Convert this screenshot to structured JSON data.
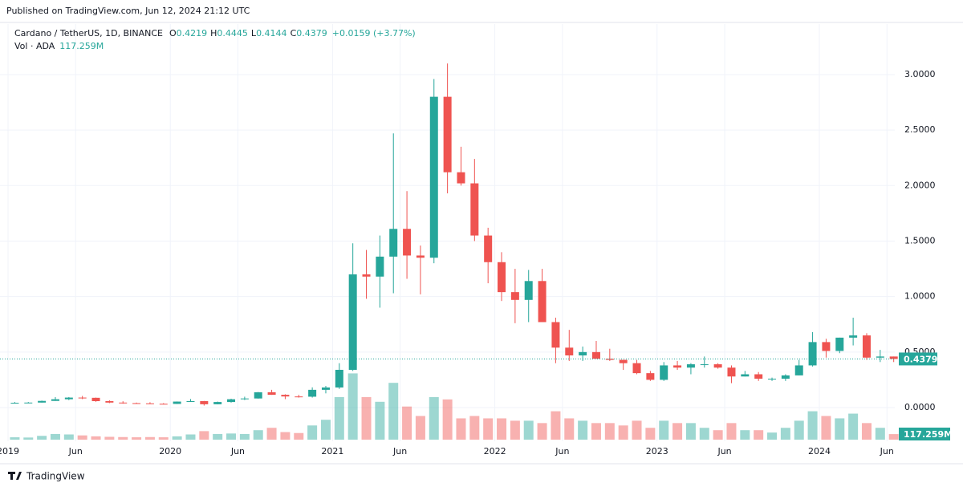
{
  "published": "Published on TradingView.com, Jun 12, 2024 21:12 UTC",
  "footer": "TradingView",
  "chart_data": {
    "type": "candlestick",
    "title": "Cardano / TetherUS, 1D, BINANCE",
    "ohlc_legend": [
      {
        "label": "O",
        "value": "0.4219"
      },
      {
        "label": "H",
        "value": "0.4445"
      },
      {
        "label": "L",
        "value": "0.4144"
      },
      {
        "label": "C",
        "value": "0.4379"
      }
    ],
    "change": "+0.0159 (+3.77%)",
    "volume_legend": {
      "label": "Vol · ADA",
      "value": "117.259M"
    },
    "x": [
      "2019-01",
      "2019-02",
      "2019-03",
      "2019-04",
      "2019-05",
      "2019-06",
      "2019-07",
      "2019-08",
      "2019-09",
      "2019-10",
      "2019-11",
      "2019-12",
      "2020-01",
      "2020-02",
      "2020-03",
      "2020-04",
      "2020-05",
      "2020-06",
      "2020-07",
      "2020-08",
      "2020-09",
      "2020-10",
      "2020-11",
      "2020-12",
      "2021-01",
      "2021-02",
      "2021-03",
      "2021-04",
      "2021-05",
      "2021-06",
      "2021-07",
      "2021-08",
      "2021-09",
      "2021-10",
      "2021-11",
      "2021-12",
      "2022-01",
      "2022-02",
      "2022-03",
      "2022-04",
      "2022-05",
      "2022-06",
      "2022-07",
      "2022-08",
      "2022-09",
      "2022-10",
      "2022-11",
      "2022-12",
      "2023-01",
      "2023-02",
      "2023-03",
      "2023-04",
      "2023-05",
      "2023-06",
      "2023-07",
      "2023-08",
      "2023-09",
      "2023-10",
      "2023-11",
      "2023-12",
      "2024-01",
      "2024-02",
      "2024-03",
      "2024-04",
      "2024-05",
      "2024-06"
    ],
    "open": [
      0.042,
      0.043,
      0.045,
      0.06,
      0.075,
      0.09,
      0.088,
      0.058,
      0.045,
      0.04,
      0.038,
      0.034,
      0.033,
      0.054,
      0.058,
      0.03,
      0.05,
      0.075,
      0.082,
      0.138,
      0.115,
      0.1,
      0.098,
      0.16,
      0.181,
      0.34,
      1.2,
      1.18,
      1.36,
      1.61,
      1.37,
      1.35,
      2.8,
      2.12,
      2.02,
      1.55,
      1.31,
      1.04,
      0.97,
      1.14,
      0.77,
      0.54,
      0.47,
      0.5,
      0.44,
      0.43,
      0.4,
      0.31,
      0.25,
      0.38,
      0.36,
      0.39,
      0.39,
      0.36,
      0.28,
      0.3,
      0.26,
      0.26,
      0.29,
      0.38,
      0.59,
      0.51,
      0.63,
      0.65,
      0.45,
      0.46
    ],
    "high": [
      0.05,
      0.05,
      0.063,
      0.094,
      0.095,
      0.105,
      0.09,
      0.065,
      0.057,
      0.045,
      0.048,
      0.04,
      0.055,
      0.077,
      0.06,
      0.054,
      0.08,
      0.098,
      0.14,
      0.16,
      0.12,
      0.115,
      0.182,
      0.195,
      0.4,
      1.48,
      1.42,
      1.55,
      2.47,
      1.95,
      1.46,
      2.96,
      3.1,
      2.35,
      2.24,
      1.62,
      1.4,
      1.25,
      1.24,
      1.25,
      0.81,
      0.7,
      0.55,
      0.6,
      0.53,
      0.43,
      0.43,
      0.33,
      0.41,
      0.42,
      0.4,
      0.46,
      0.4,
      0.38,
      0.33,
      0.32,
      0.27,
      0.3,
      0.43,
      0.68,
      0.62,
      0.63,
      0.81,
      0.67,
      0.52,
      0.46
    ],
    "low": [
      0.036,
      0.039,
      0.045,
      0.06,
      0.067,
      0.076,
      0.052,
      0.04,
      0.035,
      0.035,
      0.032,
      0.031,
      0.032,
      0.053,
      0.018,
      0.029,
      0.045,
      0.068,
      0.081,
      0.115,
      0.076,
      0.09,
      0.09,
      0.128,
      0.168,
      0.33,
      0.98,
      0.9,
      1.03,
      1.16,
      1.02,
      1.3,
      1.93,
      2.0,
      1.5,
      1.12,
      0.96,
      0.76,
      0.77,
      0.77,
      0.4,
      0.42,
      0.42,
      0.44,
      0.42,
      0.34,
      0.3,
      0.24,
      0.24,
      0.34,
      0.3,
      0.36,
      0.35,
      0.22,
      0.28,
      0.24,
      0.24,
      0.24,
      0.29,
      0.37,
      0.45,
      0.49,
      0.56,
      0.43,
      0.41,
      0.41
    ],
    "close": [
      0.043,
      0.045,
      0.06,
      0.075,
      0.09,
      0.088,
      0.058,
      0.045,
      0.04,
      0.038,
      0.034,
      0.033,
      0.054,
      0.058,
      0.03,
      0.05,
      0.075,
      0.082,
      0.138,
      0.115,
      0.1,
      0.098,
      0.16,
      0.181,
      0.34,
      1.2,
      1.18,
      1.36,
      1.61,
      1.37,
      1.35,
      2.8,
      2.12,
      2.02,
      1.55,
      1.31,
      1.04,
      0.97,
      1.14,
      0.77,
      0.54,
      0.47,
      0.5,
      0.44,
      0.43,
      0.4,
      0.31,
      0.25,
      0.38,
      0.36,
      0.39,
      0.39,
      0.36,
      0.28,
      0.3,
      0.26,
      0.26,
      0.29,
      0.38,
      0.59,
      0.51,
      0.63,
      0.65,
      0.45,
      0.46,
      0.4379
    ],
    "volume": [
      50,
      45,
      80,
      120,
      110,
      90,
      70,
      60,
      55,
      50,
      55,
      50,
      70,
      110,
      180,
      120,
      130,
      120,
      200,
      250,
      160,
      140,
      300,
      420,
      900,
      1400,
      900,
      800,
      1200,
      700,
      500,
      900,
      850,
      450,
      500,
      450,
      450,
      400,
      400,
      350,
      600,
      450,
      400,
      350,
      350,
      300,
      400,
      250,
      400,
      350,
      350,
      250,
      200,
      350,
      200,
      200,
      150,
      250,
      400,
      600,
      500,
      450,
      550,
      350,
      250,
      117.259
    ],
    "up_color": "#26a69a",
    "down_color": "#ef5350",
    "ylim": [
      -0.289,
      3.455
    ],
    "yticks": [
      {
        "value": 0,
        "label": "0.0000"
      },
      {
        "value": 0.5,
        "label": "0.5000"
      },
      {
        "value": 1,
        "label": "1.0000"
      },
      {
        "value": 1.5,
        "label": "1.5000"
      },
      {
        "value": 2,
        "label": "2.0000"
      },
      {
        "value": 2.5,
        "label": "2.5000"
      },
      {
        "value": 3,
        "label": "3.0000"
      }
    ],
    "vlim": [
      0,
      2000
    ],
    "xticks": [
      {
        "value": "2019-01",
        "label": "2019"
      },
      {
        "value": "2019-06",
        "label": "Jun"
      },
      {
        "value": "2020-01",
        "label": "2020"
      },
      {
        "value": "2020-06",
        "label": "Jun"
      },
      {
        "value": "2021-01",
        "label": "2021"
      },
      {
        "value": "2021-06",
        "label": "Jun"
      },
      {
        "value": "2022-01",
        "label": "2022"
      },
      {
        "value": "2022-06",
        "label": "Jun"
      },
      {
        "value": "2023-01",
        "label": "2023"
      },
      {
        "value": "2023-06",
        "label": "Jun"
      },
      {
        "value": "2024-01",
        "label": "2024"
      },
      {
        "value": "2024-06",
        "label": "Jun"
      }
    ],
    "last_price": {
      "value": 0.4379,
      "label": "0.4379"
    },
    "grid": true
  }
}
